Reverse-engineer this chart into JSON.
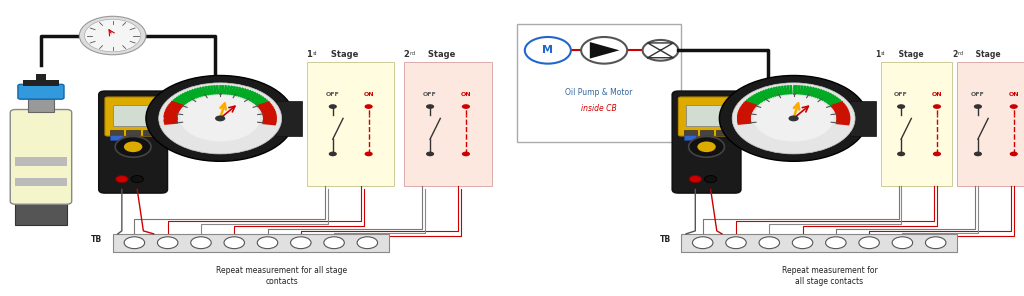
{
  "bg_color": "#ffffff",
  "panel1": {
    "repeat_text": "Repeat measurement for all stage\ncontacts"
  },
  "panel2": {
    "box_label_line1": "Oil Pump & Motor",
    "box_label_line2": "inside CB",
    "repeat_text": "Repeat measurement for\nall stage contacts"
  },
  "colors": {
    "stage1_bg": "#fffce0",
    "stage2_bg": "#fde8e0",
    "black": "#111111",
    "red": "#cc0000",
    "gray": "#777777",
    "yellow": "#ddaa00",
    "blue": "#2266cc",
    "cyl_body": "#f8f8cc",
    "cyl_band": "#cccccc",
    "cyl_base": "#555555"
  }
}
